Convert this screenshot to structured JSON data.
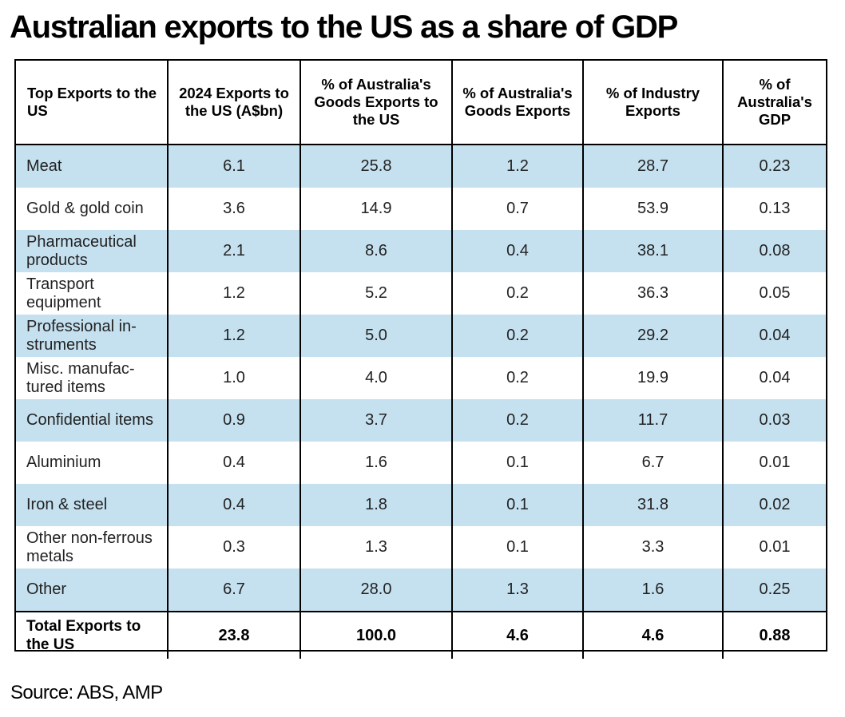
{
  "title": "Australian exports to the US as a share of GDP",
  "source": "Source: ABS, AMP",
  "chart_data": {
    "type": "table",
    "columns": [
      "Top Exports to the US",
      "2024 Exports to the US (A$bn)",
      "% of Australia's Goods Exports to the US",
      "% of Australia's Goods Exports",
      "% of Industry Exports",
      "% of Australia's GDP"
    ],
    "rows": [
      [
        "Meat",
        "6.1",
        "25.8",
        "1.2",
        "28.7",
        "0.23"
      ],
      [
        "Gold & gold coin",
        "3.6",
        "14.9",
        "0.7",
        "53.9",
        "0.13"
      ],
      [
        "Pharmaceutical products",
        "2.1",
        "8.6",
        "0.4",
        "38.1",
        "0.08"
      ],
      [
        "Transport equipment",
        "1.2",
        "5.2",
        "0.2",
        "36.3",
        "0.05"
      ],
      [
        "Professional in-struments",
        "1.2",
        "5.0",
        "0.2",
        "29.2",
        "0.04"
      ],
      [
        "Misc. manufac-tured items",
        "1.0",
        "4.0",
        "0.2",
        "19.9",
        "0.04"
      ],
      [
        "Confidential items",
        "0.9",
        "3.7",
        "0.2",
        "11.7",
        "0.03"
      ],
      [
        "Aluminium",
        "0.4",
        "1.6",
        "0.1",
        "6.7",
        "0.01"
      ],
      [
        "Iron & steel",
        "0.4",
        "1.8",
        "0.1",
        "31.8",
        "0.02"
      ],
      [
        "Other non-ferrous metals",
        "0.3",
        "1.3",
        "0.1",
        "3.3",
        "0.01"
      ],
      [
        "Other",
        "6.7",
        "28.0",
        "1.3",
        "1.6",
        "0.25"
      ]
    ],
    "total_row": [
      "Total Exports to the US",
      "23.8",
      "100.0",
      "4.6",
      "4.6",
      "0.88"
    ],
    "row_shading_color": "#c5e1f0"
  }
}
